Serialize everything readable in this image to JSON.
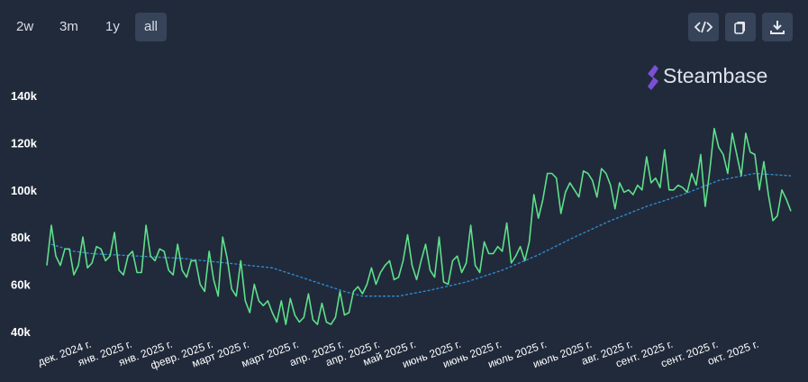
{
  "toolbar": {
    "ranges": [
      "2w",
      "3m",
      "1y",
      "all"
    ],
    "active_index": 3
  },
  "brand": "Steambase",
  "chart_data": {
    "type": "line",
    "xlim": [
      0,
      165
    ],
    "xticks": [
      {
        "value": 10,
        "label": "дек. 2024 г."
      },
      {
        "value": 19,
        "label": "янв. 2025 г."
      },
      {
        "value": 28,
        "label": "янв. 2025 г."
      },
      {
        "value": 37,
        "label": "февр. 2025 г."
      },
      {
        "value": 45,
        "label": "март 2025 г."
      },
      {
        "value": 56,
        "label": "март 2025 г."
      },
      {
        "value": 66,
        "label": "апр. 2025 г."
      },
      {
        "value": 74,
        "label": "апр. 2025 г."
      },
      {
        "value": 82,
        "label": "май 2025 г."
      },
      {
        "value": 92,
        "label": "июнь 2025 г."
      },
      {
        "value": 101,
        "label": "июнь 2025 г."
      },
      {
        "value": 111,
        "label": "июль 2025 г."
      },
      {
        "value": 121,
        "label": "июль 2025 г."
      },
      {
        "value": 130,
        "label": "авг. 2025 г."
      },
      {
        "value": 139,
        "label": "сент. 2025 г."
      },
      {
        "value": 149,
        "label": "сент. 2025 г."
      },
      {
        "value": 158,
        "label": "окт. 2025 г."
      }
    ],
    "ylim": [
      40000,
      140000
    ],
    "yticks": [
      {
        "value": 40000,
        "label": "40k"
      },
      {
        "value": 60000,
        "label": "60k"
      },
      {
        "value": 80000,
        "label": "80k"
      },
      {
        "value": 100000,
        "label": "100k"
      },
      {
        "value": 120000,
        "label": "120k"
      },
      {
        "value": 140000,
        "label": "140k"
      }
    ],
    "grid": false,
    "series": [
      {
        "color": "#5ee08a",
        "dashed": false,
        "x": [
          0,
          1,
          2,
          3,
          4,
          5,
          6,
          7,
          8,
          9,
          10,
          11,
          12,
          13,
          14,
          15,
          16,
          17,
          18,
          19,
          20,
          21,
          22,
          23,
          24,
          25,
          26,
          27,
          28,
          29,
          30,
          31,
          32,
          33,
          34,
          35,
          36,
          37,
          38,
          39,
          40,
          41,
          42,
          43,
          44,
          45,
          46,
          47,
          48,
          49,
          50,
          51,
          52,
          53,
          54,
          55,
          56,
          57,
          58,
          59,
          60,
          61,
          62,
          63,
          64,
          65,
          66,
          67,
          68,
          69,
          70,
          71,
          72,
          73,
          74,
          75,
          76,
          77,
          78,
          79,
          80,
          81,
          82,
          83,
          84,
          85,
          86,
          87,
          88,
          89,
          90,
          91,
          92,
          93,
          94,
          95,
          96,
          97,
          98,
          99,
          100,
          101,
          102,
          103,
          104,
          105,
          106,
          107,
          108,
          109,
          110,
          111,
          112,
          113,
          114,
          115,
          116,
          117,
          118,
          119,
          120,
          121,
          122,
          123,
          124,
          125,
          126,
          127,
          128,
          129,
          130,
          131,
          132,
          133,
          134,
          135,
          136,
          137,
          138,
          139,
          140,
          141,
          142,
          143,
          144,
          145,
          146,
          147,
          148,
          149,
          150,
          151,
          152,
          153,
          154,
          155,
          156,
          157,
          158,
          159,
          160,
          161,
          162,
          163,
          164,
          165
        ],
        "values": [
          68000,
          85000,
          72000,
          68000,
          75000,
          75000,
          64000,
          68000,
          80000,
          67000,
          69000,
          76000,
          75000,
          70000,
          72000,
          82000,
          66000,
          64000,
          72000,
          74000,
          65000,
          65000,
          85000,
          72000,
          70000,
          75000,
          74000,
          66000,
          64000,
          77000,
          66000,
          63000,
          70000,
          70000,
          60000,
          57000,
          74000,
          62000,
          55000,
          80000,
          71000,
          58000,
          55000,
          70000,
          53000,
          48000,
          60000,
          53000,
          51000,
          53000,
          48000,
          44000,
          53000,
          43000,
          54000,
          47000,
          44000,
          46000,
          56000,
          45000,
          43000,
          52000,
          44000,
          43000,
          46000,
          57000,
          47000,
          48000,
          57000,
          59000,
          56000,
          60000,
          67000,
          60000,
          65000,
          68000,
          70000,
          62000,
          63000,
          70000,
          81000,
          68000,
          62000,
          70000,
          77000,
          66000,
          63000,
          80000,
          61000,
          60000,
          70000,
          72000,
          65000,
          69000,
          85000,
          68000,
          65000,
          78000,
          73000,
          73000,
          76000,
          74000,
          86000,
          69000,
          72000,
          76000,
          70000,
          78000,
          98000,
          88000,
          96000,
          107000,
          107000,
          105000,
          90000,
          99000,
          103000,
          100000,
          97000,
          108000,
          107000,
          104000,
          97000,
          109000,
          107000,
          102000,
          92000,
          103000,
          99000,
          100000,
          98000,
          102000,
          100000,
          114000,
          103000,
          105000,
          101000,
          117000,
          100000,
          100000,
          102000,
          101000,
          99000,
          107000,
          102000,
          115000,
          93000,
          108000,
          126000,
          118000,
          115000,
          107000,
          124000,
          115000,
          106000,
          124000,
          116000,
          115000,
          100000,
          112000,
          98000,
          87000,
          89000,
          100000,
          96000,
          91000
        ]
      },
      {
        "color": "#2e8fd6",
        "dashed": true,
        "x": [
          1,
          6,
          10,
          20,
          30,
          40,
          50,
          58,
          66,
          70,
          78,
          85,
          93,
          101,
          109,
          117,
          125,
          133,
          141,
          149,
          157,
          165
        ],
        "values": [
          77000,
          74000,
          73000,
          72000,
          71000,
          69000,
          67000,
          62000,
          57000,
          55000,
          55000,
          57500,
          61000,
          66000,
          72500,
          80000,
          87000,
          93000,
          98000,
          104000,
          107000,
          106000
        ]
      }
    ]
  }
}
